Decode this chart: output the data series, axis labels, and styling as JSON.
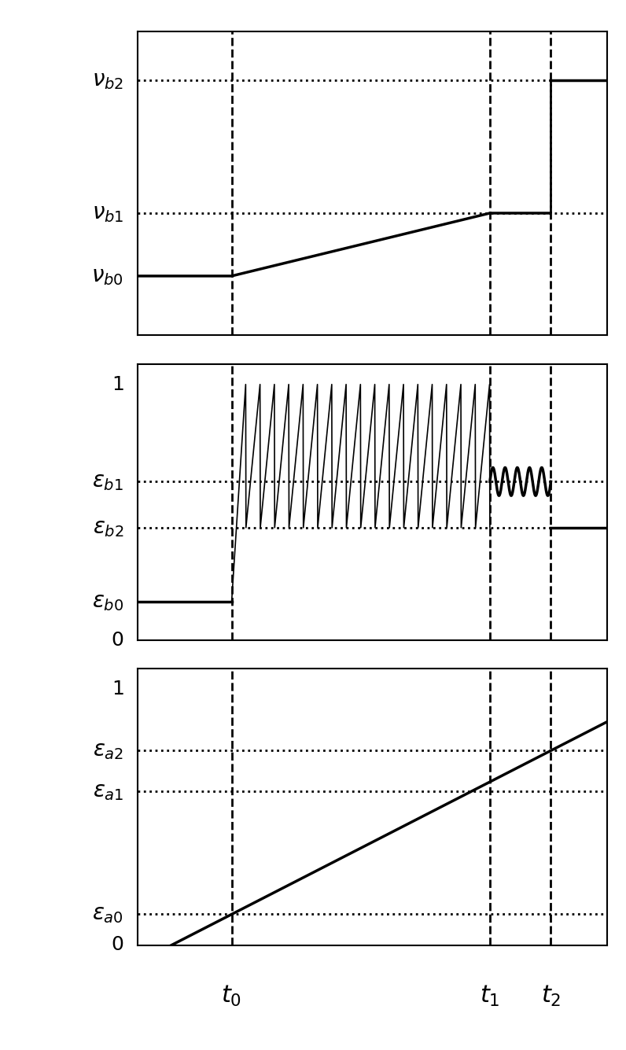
{
  "fig_width": 7.96,
  "fig_height": 13.35,
  "dpi": 100,
  "background_color": "#ffffff",
  "t0": 0.2,
  "t1": 0.75,
  "t2": 0.88,
  "panel1": {
    "vb0": 0.32,
    "vb1": 0.5,
    "vb2": 0.88
  },
  "panel2": {
    "eb0": 0.15,
    "eb1": 0.62,
    "eb2": 0.44
  },
  "panel3": {
    "ea0": 0.12,
    "ea1": 0.6,
    "ea2": 0.76
  },
  "lw_main": 2.5,
  "lw_dashed": 2.0,
  "lw_thin": 1.2,
  "fontsize_label": 20,
  "fontsize_tick": 18,
  "fontsize_xtick": 22
}
